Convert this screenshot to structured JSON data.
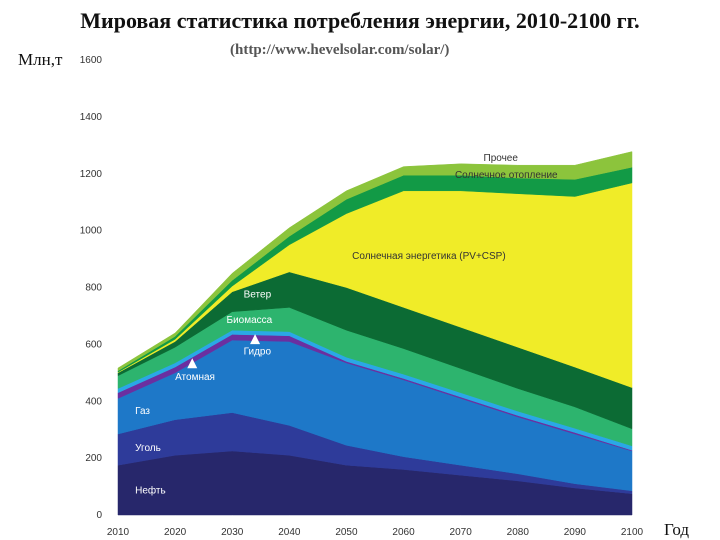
{
  "chart_data": {
    "type": "area",
    "title": "Мировая статистика потребления энергии, 2010-2100 гг.",
    "subtitle": "(http://www.hevelsolar.com/solar/)",
    "ylabel": "Млн,т",
    "xlabel": "Год",
    "x": [
      2010,
      2020,
      2030,
      2040,
      2050,
      2060,
      2070,
      2080,
      2090,
      2100
    ],
    "ylim": [
      0,
      1600
    ],
    "yticks": [
      0,
      200,
      400,
      600,
      800,
      1000,
      1200,
      1400,
      1600
    ],
    "series": [
      {
        "name": "Нефть",
        "color": "#27276b",
        "values": [
          175,
          210,
          225,
          210,
          175,
          160,
          140,
          120,
          95,
          75
        ]
      },
      {
        "name": "Уголь",
        "color": "#2e3b9a",
        "values": [
          110,
          125,
          135,
          105,
          70,
          45,
          35,
          25,
          15,
          10
        ]
      },
      {
        "name": "Газ",
        "color": "#1e78c8",
        "values": [
          125,
          165,
          255,
          295,
          290,
          270,
          235,
          200,
          175,
          140
        ]
      },
      {
        "name": "Атомная",
        "color": "#6b2fa0",
        "values": [
          20,
          20,
          20,
          20,
          5,
          5,
          5,
          5,
          5,
          3
        ]
      },
      {
        "name": "Гидро",
        "color": "#2aa8e6",
        "values": [
          15,
          15,
          15,
          15,
          15,
          15,
          15,
          15,
          15,
          15
        ]
      },
      {
        "name": "Биомасса",
        "color": "#2db46e",
        "values": [
          45,
          55,
          65,
          85,
          95,
          90,
          85,
          80,
          75,
          60
        ]
      },
      {
        "name": "Ветер",
        "color": "#0c6b34",
        "values": [
          10,
          20,
          70,
          125,
          150,
          145,
          145,
          145,
          140,
          145
        ]
      },
      {
        "name": "Солнечная энергетика (PV+CSP)",
        "color": "#f0ec28",
        "values": [
          2,
          8,
          20,
          95,
          260,
          410,
          480,
          540,
          600,
          720
        ]
      },
      {
        "name": "Солнечное отопление",
        "color": "#129a46",
        "values": [
          5,
          10,
          20,
          30,
          50,
          55,
          55,
          55,
          60,
          55
        ]
      },
      {
        "name": "Прочее",
        "color": "#8cc43c",
        "values": [
          10,
          12,
          25,
          30,
          30,
          30,
          40,
          45,
          50,
          55
        ]
      }
    ],
    "annotations": [
      {
        "text": "Нефть",
        "x": 2013,
        "y": 75,
        "color": "#ffffff"
      },
      {
        "text": "Уголь",
        "x": 2013,
        "y": 225,
        "color": "#ffffff"
      },
      {
        "text": "Газ",
        "x": 2013,
        "y": 355,
        "color": "#ffffff"
      },
      {
        "text": "Атомная",
        "x": 2020,
        "y": 475,
        "color": "#ffffff",
        "marker": true,
        "marker_x": 2023,
        "marker_y": 530
      },
      {
        "text": "Гидро",
        "x": 2032,
        "y": 565,
        "color": "#ffffff",
        "marker": true,
        "marker_x": 2034,
        "marker_y": 615
      },
      {
        "text": "Биомасса",
        "x": 2029,
        "y": 675,
        "color": "#ffffff"
      },
      {
        "text": "Ветер",
        "x": 2032,
        "y": 765,
        "color": "#ffffff"
      },
      {
        "text": "Солнечная энергетика (PV+CSP)",
        "x": 2051,
        "y": 900,
        "color": "#333333"
      },
      {
        "text": "Солнечное отопление",
        "x": 2069,
        "y": 1185,
        "color": "#333333"
      },
      {
        "text": "Прочее",
        "x": 2074,
        "y": 1245,
        "color": "#333333"
      }
    ]
  }
}
